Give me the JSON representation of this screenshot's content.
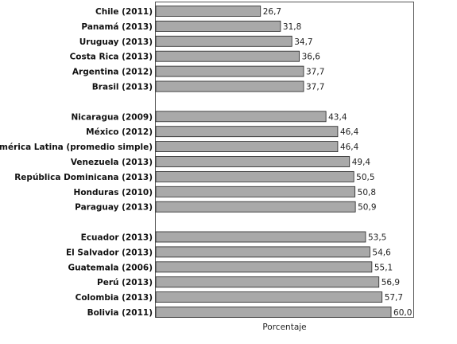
{
  "chart_data": {
    "type": "bar",
    "orientation": "horizontal",
    "title": "",
    "xlabel": "Porcentaje",
    "ylabel": "",
    "xlim": [
      0,
      64
    ],
    "grid": false,
    "bar_color": "#a9a9a9",
    "bar_edge_color": "#222222",
    "groups": [
      {
        "items": [
          {
            "label": "Chile (2011)",
            "value": 26.7,
            "value_label": "26,7"
          },
          {
            "label": "Panamá (2013)",
            "value": 31.8,
            "value_label": "31,8"
          },
          {
            "label": "Uruguay (2013)",
            "value": 34.7,
            "value_label": "34,7"
          },
          {
            "label": "Costa Rica (2013)",
            "value": 36.6,
            "value_label": "36,6"
          },
          {
            "label": "Argentina (2012)",
            "value": 37.7,
            "value_label": "37,7"
          },
          {
            "label": "Brasil (2013)",
            "value": 37.7,
            "value_label": "37,7"
          }
        ]
      },
      {
        "items": [
          {
            "label": "Nicaragua (2009)",
            "value": 43.4,
            "value_label": "43,4"
          },
          {
            "label": "México (2012)",
            "value": 46.4,
            "value_label": "46,4"
          },
          {
            "label": "América Latina (promedio simple)",
            "value": 46.4,
            "value_label": "46,4"
          },
          {
            "label": "Venezuela (2013)",
            "value": 49.4,
            "value_label": "49,4"
          },
          {
            "label": "República Dominicana (2013)",
            "value": 50.5,
            "value_label": "50,5"
          },
          {
            "label": "Honduras (2010)",
            "value": 50.8,
            "value_label": "50,8"
          },
          {
            "label": "Paraguay (2013)",
            "value": 50.9,
            "value_label": "50,9"
          }
        ]
      },
      {
        "items": [
          {
            "label": "Ecuador (2013)",
            "value": 53.5,
            "value_label": "53,5"
          },
          {
            "label": "El Salvador (2013)",
            "value": 54.6,
            "value_label": "54,6"
          },
          {
            "label": "Guatemala (2006)",
            "value": 55.1,
            "value_label": "55,1"
          },
          {
            "label": "Perú (2013)",
            "value": 56.9,
            "value_label": "56,9"
          },
          {
            "label": "Colombia (2013)",
            "value": 57.7,
            "value_label": "57,7"
          },
          {
            "label": "Bolivia (2011)",
            "value": 60.0,
            "value_label": "60,0"
          }
        ]
      }
    ]
  }
}
